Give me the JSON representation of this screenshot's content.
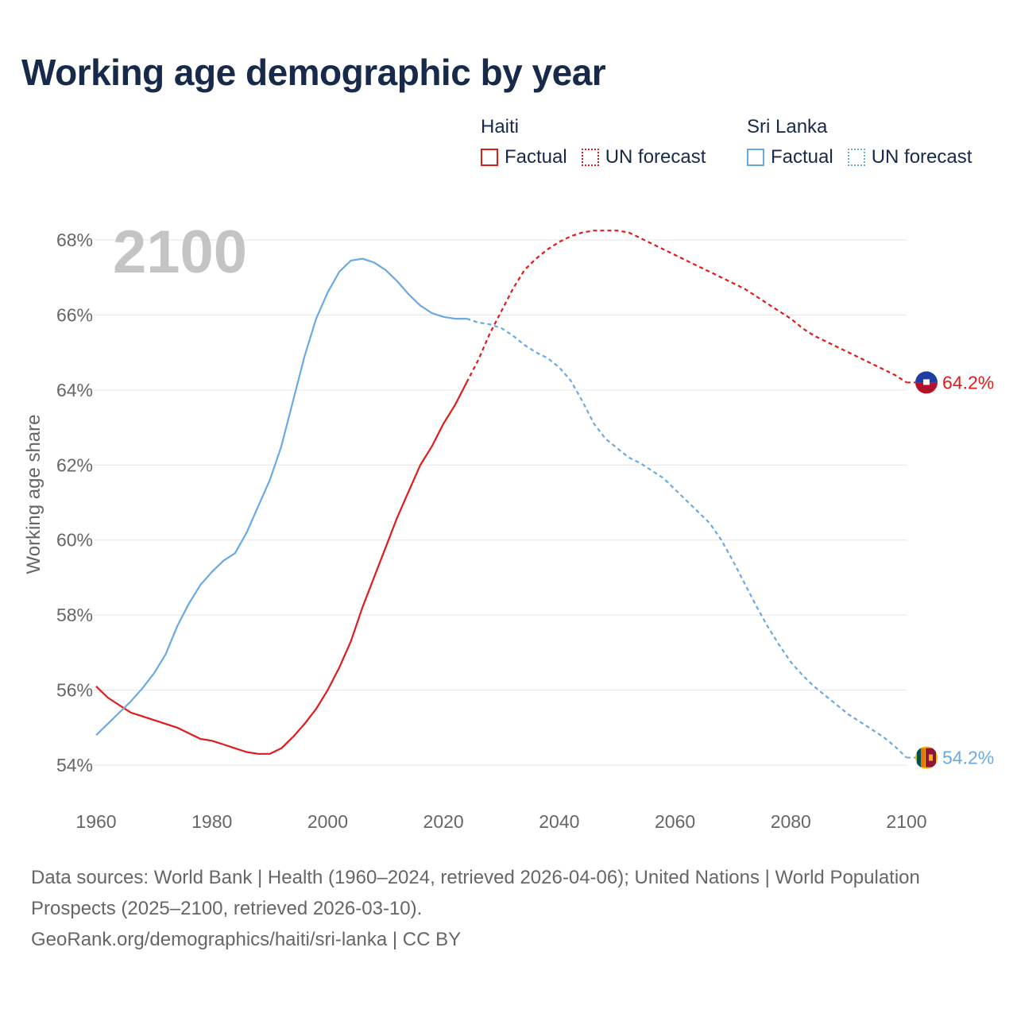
{
  "title": "Working age demographic by year",
  "legend": {
    "groups": [
      {
        "name": "Haiti",
        "factual": "Factual",
        "forecast": "UN forecast",
        "color": "#e01b1b"
      },
      {
        "name": "Sri Lanka",
        "factual": "Factual",
        "forecast": "UN forecast",
        "color": "#6aaae4"
      }
    ]
  },
  "year_display": "2100",
  "colors": {
    "haiti": "#e01b1b",
    "sri_lanka": "#6aaae4",
    "grid": "#e6e6e6",
    "axis_text": "#666666",
    "year_watermark": "#c4c4c4"
  },
  "chart_data": {
    "type": "line",
    "title": "Working age demographic by year",
    "xlabel": "",
    "ylabel": "Working age share",
    "xlim": [
      1960,
      2100
    ],
    "ylim": [
      54,
      68
    ],
    "x_ticks": [
      1960,
      1980,
      2000,
      2020,
      2040,
      2060,
      2080,
      2100
    ],
    "x_tick_labels": [
      "1960",
      "1980",
      "2000",
      "2020",
      "2040",
      "2060",
      "2080",
      "2100"
    ],
    "y_ticks": [
      54,
      56,
      58,
      60,
      62,
      64,
      66,
      68
    ],
    "y_tick_labels": [
      "54%",
      "56%",
      "58%",
      "60%",
      "62%",
      "64%",
      "66%",
      "68%"
    ],
    "factual_end_year": 2024,
    "series": [
      {
        "name": "Haiti",
        "color": "#e01b1b",
        "end_label": "64.2%",
        "points": [
          [
            1960,
            56.1
          ],
          [
            1962,
            55.8
          ],
          [
            1964,
            55.6
          ],
          [
            1966,
            55.4
          ],
          [
            1968,
            55.3
          ],
          [
            1970,
            55.2
          ],
          [
            1972,
            55.1
          ],
          [
            1974,
            55.0
          ],
          [
            1976,
            54.85
          ],
          [
            1978,
            54.7
          ],
          [
            1980,
            54.65
          ],
          [
            1982,
            54.55
          ],
          [
            1984,
            54.45
          ],
          [
            1986,
            54.35
          ],
          [
            1988,
            54.3
          ],
          [
            1990,
            54.3
          ],
          [
            1992,
            54.45
          ],
          [
            1994,
            54.75
          ],
          [
            1996,
            55.1
          ],
          [
            1998,
            55.5
          ],
          [
            2000,
            56.0
          ],
          [
            2002,
            56.6
          ],
          [
            2004,
            57.3
          ],
          [
            2006,
            58.2
          ],
          [
            2008,
            59.0
          ],
          [
            2010,
            59.8
          ],
          [
            2012,
            60.6
          ],
          [
            2014,
            61.3
          ],
          [
            2016,
            62.0
          ],
          [
            2018,
            62.5
          ],
          [
            2020,
            63.1
          ],
          [
            2022,
            63.6
          ],
          [
            2024,
            64.2
          ],
          [
            2026,
            64.8
          ],
          [
            2028,
            65.5
          ],
          [
            2030,
            66.1
          ],
          [
            2032,
            66.7
          ],
          [
            2034,
            67.2
          ],
          [
            2036,
            67.5
          ],
          [
            2038,
            67.75
          ],
          [
            2040,
            67.95
          ],
          [
            2042,
            68.1
          ],
          [
            2044,
            68.2
          ],
          [
            2046,
            68.25
          ],
          [
            2048,
            68.25
          ],
          [
            2050,
            68.25
          ],
          [
            2052,
            68.2
          ],
          [
            2054,
            68.05
          ],
          [
            2056,
            67.9
          ],
          [
            2058,
            67.75
          ],
          [
            2060,
            67.6
          ],
          [
            2062,
            67.45
          ],
          [
            2064,
            67.3
          ],
          [
            2066,
            67.15
          ],
          [
            2068,
            67.0
          ],
          [
            2070,
            66.85
          ],
          [
            2072,
            66.7
          ],
          [
            2074,
            66.5
          ],
          [
            2076,
            66.3
          ],
          [
            2078,
            66.1
          ],
          [
            2080,
            65.9
          ],
          [
            2082,
            65.65
          ],
          [
            2084,
            65.45
          ],
          [
            2086,
            65.3
          ],
          [
            2088,
            65.15
          ],
          [
            2090,
            65.0
          ],
          [
            2092,
            64.85
          ],
          [
            2094,
            64.7
          ],
          [
            2096,
            64.55
          ],
          [
            2098,
            64.4
          ],
          [
            2100,
            64.2
          ]
        ]
      },
      {
        "name": "Sri Lanka",
        "color": "#6aaae4",
        "end_label": "54.2%",
        "points": [
          [
            1960,
            54.8
          ],
          [
            1962,
            55.1
          ],
          [
            1964,
            55.4
          ],
          [
            1966,
            55.7
          ],
          [
            1968,
            56.05
          ],
          [
            1970,
            56.45
          ],
          [
            1972,
            56.95
          ],
          [
            1974,
            57.7
          ],
          [
            1976,
            58.3
          ],
          [
            1978,
            58.8
          ],
          [
            1980,
            59.15
          ],
          [
            1982,
            59.45
          ],
          [
            1984,
            59.65
          ],
          [
            1986,
            60.2
          ],
          [
            1988,
            60.9
          ],
          [
            1990,
            61.6
          ],
          [
            1992,
            62.5
          ],
          [
            1994,
            63.7
          ],
          [
            1996,
            64.9
          ],
          [
            1998,
            65.9
          ],
          [
            2000,
            66.6
          ],
          [
            2002,
            67.15
          ],
          [
            2004,
            67.45
          ],
          [
            2006,
            67.5
          ],
          [
            2008,
            67.4
          ],
          [
            2010,
            67.2
          ],
          [
            2012,
            66.9
          ],
          [
            2014,
            66.55
          ],
          [
            2016,
            66.25
          ],
          [
            2018,
            66.05
          ],
          [
            2020,
            65.95
          ],
          [
            2022,
            65.9
          ],
          [
            2024,
            65.9
          ],
          [
            2026,
            65.8
          ],
          [
            2028,
            65.75
          ],
          [
            2030,
            65.65
          ],
          [
            2032,
            65.45
          ],
          [
            2034,
            65.2
          ],
          [
            2036,
            65.0
          ],
          [
            2038,
            64.85
          ],
          [
            2040,
            64.6
          ],
          [
            2042,
            64.25
          ],
          [
            2044,
            63.7
          ],
          [
            2046,
            63.1
          ],
          [
            2048,
            62.7
          ],
          [
            2050,
            62.45
          ],
          [
            2052,
            62.2
          ],
          [
            2054,
            62.05
          ],
          [
            2056,
            61.85
          ],
          [
            2058,
            61.65
          ],
          [
            2060,
            61.35
          ],
          [
            2062,
            61.05
          ],
          [
            2064,
            60.75
          ],
          [
            2066,
            60.45
          ],
          [
            2068,
            60.0
          ],
          [
            2070,
            59.45
          ],
          [
            2072,
            58.85
          ],
          [
            2074,
            58.25
          ],
          [
            2076,
            57.7
          ],
          [
            2078,
            57.2
          ],
          [
            2080,
            56.75
          ],
          [
            2082,
            56.4
          ],
          [
            2084,
            56.1
          ],
          [
            2086,
            55.85
          ],
          [
            2088,
            55.6
          ],
          [
            2090,
            55.35
          ],
          [
            2092,
            55.15
          ],
          [
            2094,
            54.95
          ],
          [
            2096,
            54.75
          ],
          [
            2098,
            54.5
          ],
          [
            2100,
            54.2
          ]
        ]
      }
    ]
  },
  "sources": {
    "line1": "Data sources: World Bank | Health (1960–2024, retrieved 2026-04-06); United Nations | World Population Prospects (2025–2100, retrieved 2026-03-10).",
    "line2": "GeoRank.org/demographics/haiti/sri-lanka | CC BY"
  }
}
